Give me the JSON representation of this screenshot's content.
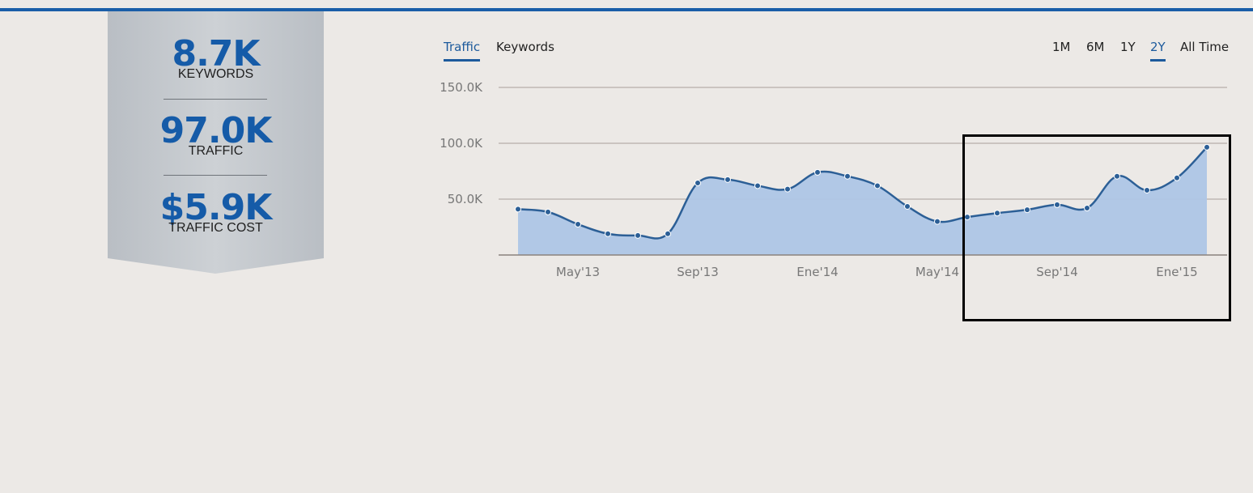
{
  "stats": {
    "keywords": {
      "value": "8.7K",
      "label": "KEYWORDS"
    },
    "traffic": {
      "value": "97.0K",
      "label": "TRAFFIC"
    },
    "cost": {
      "value": "$5.9K",
      "label": "TRAFFIC COST"
    }
  },
  "tabs": {
    "traffic": "Traffic",
    "keywords": "Keywords",
    "active": "Traffic"
  },
  "ranges": {
    "m1": "1M",
    "m6": "6M",
    "y1": "1Y",
    "y2": "2Y",
    "all": "All Time",
    "active": "2Y"
  },
  "colors": {
    "accent": "#1a5ea8",
    "line": "#2c5f96",
    "area": "#aec6e6",
    "ribbon": "#c4c9ce",
    "background": "#ece9e6"
  },
  "chart_data": {
    "type": "area",
    "ylim": [
      0,
      150000
    ],
    "y_tick_labels": [
      "50.0K",
      "100.0K",
      "150.0K"
    ],
    "y_tick_values": [
      50000,
      100000,
      150000
    ],
    "x_tick_labels": [
      "May'13",
      "Sep'13",
      "Ene'14",
      "May'14",
      "Sep'14",
      "Ene'15"
    ],
    "x_tick_month_index": [
      2,
      6,
      10,
      14,
      18,
      22
    ],
    "grid": true,
    "values": [
      41000,
      38500,
      27500,
      19000,
      17500,
      19000,
      64500,
      67500,
      62000,
      59000,
      74000,
      70500,
      62000,
      43500,
      30000,
      34000,
      37500,
      40500,
      45000,
      42000,
      70500,
      58000,
      69000,
      96500
    ]
  }
}
